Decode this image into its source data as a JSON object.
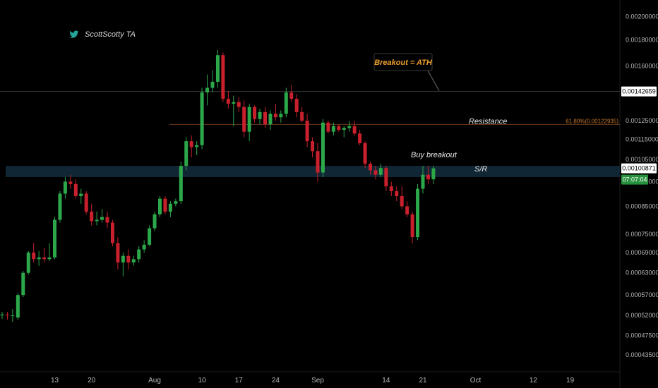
{
  "watermark": {
    "text": "ScottScotty TA",
    "icon": "twitter-bird-icon"
  },
  "colors": {
    "up": "#2ca84a",
    "down": "#c8202c",
    "sr_band": "#132a3a",
    "fib": "#c77a2e",
    "badge_green": "#27903d"
  },
  "annotations": {
    "breakout": "Breakout = ATH",
    "resistance": "Resistance",
    "buy_breakout": "Buy breakout",
    "sr": "S/R",
    "fib_label": "61.80%(0.00122935)"
  },
  "chart_data": {
    "type": "candlestick",
    "y_axis": {
      "scale": "log",
      "ylim": [
        0.000415,
        0.0021
      ],
      "ticks": [
        "0.00200000",
        "0.00180000",
        "0.00160000",
        "0.00142659",
        "0.00125000",
        "0.00115000",
        "0.00105000",
        "0.00100871",
        "0.00095000",
        "0.00085000",
        "0.00075000",
        "0.00069000",
        "0.00063000",
        "0.00057000",
        "0.00052000",
        "0.00047500",
        "0.00043500"
      ],
      "ath_level": "0.00142659",
      "current_price": "0.00100871",
      "countdown": "07:07:04"
    },
    "x_axis": {
      "labels": [
        "13",
        "20",
        "Aug",
        "10",
        "17",
        "24",
        "Sep",
        "14",
        "21",
        "Oct",
        "12",
        "19"
      ]
    },
    "resistance_level": 0.00122935,
    "sr_band": [
      0.00097,
      0.00102
    ],
    "candles": [
      {
        "o": 0.00052,
        "h": 0.000528,
        "l": 0.000512,
        "c": 0.000522
      },
      {
        "o": 0.000522,
        "h": 0.000528,
        "l": 0.00051,
        "c": 0.00052
      },
      {
        "o": 0.00052,
        "h": 0.000535,
        "l": 0.000505,
        "c": 0.00052
      },
      {
        "o": 0.000515,
        "h": 0.000575,
        "l": 0.00051,
        "c": 0.00057
      },
      {
        "o": 0.00057,
        "h": 0.000635,
        "l": 0.000565,
        "c": 0.00063
      },
      {
        "o": 0.00063,
        "h": 0.000695,
        "l": 0.000625,
        "c": 0.00069
      },
      {
        "o": 0.00069,
        "h": 0.00072,
        "l": 0.00066,
        "c": 0.00067
      },
      {
        "o": 0.00067,
        "h": 0.000695,
        "l": 0.00065,
        "c": 0.000675
      },
      {
        "o": 0.000675,
        "h": 0.000705,
        "l": 0.00066,
        "c": 0.00067
      },
      {
        "o": 0.00067,
        "h": 0.00072,
        "l": 0.000665,
        "c": 0.000675
      },
      {
        "o": 0.000675,
        "h": 0.00081,
        "l": 0.00067,
        "c": 0.0008
      },
      {
        "o": 0.0008,
        "h": 0.00091,
        "l": 0.00079,
        "c": 0.0009
      },
      {
        "o": 0.0009,
        "h": 0.00097,
        "l": 0.00088,
        "c": 0.00095
      },
      {
        "o": 0.00095,
        "h": 0.00098,
        "l": 0.00092,
        "c": 0.00094
      },
      {
        "o": 0.00094,
        "h": 0.00096,
        "l": 0.00088,
        "c": 0.00089
      },
      {
        "o": 0.00089,
        "h": 0.00092,
        "l": 0.00086,
        "c": 0.0009
      },
      {
        "o": 0.0009,
        "h": 0.00091,
        "l": 0.00082,
        "c": 0.00083
      },
      {
        "o": 0.00083,
        "h": 0.00086,
        "l": 0.00078,
        "c": 0.000795
      },
      {
        "o": 0.000795,
        "h": 0.00083,
        "l": 0.00078,
        "c": 0.0008
      },
      {
        "o": 0.0008,
        "h": 0.00084,
        "l": 0.00079,
        "c": 0.00081
      },
      {
        "o": 0.00081,
        "h": 0.00083,
        "l": 0.00077,
        "c": 0.00079
      },
      {
        "o": 0.00079,
        "h": 0.0008,
        "l": 0.00071,
        "c": 0.00072
      },
      {
        "o": 0.00072,
        "h": 0.00074,
        "l": 0.00064,
        "c": 0.00066
      },
      {
        "o": 0.00066,
        "h": 0.00069,
        "l": 0.00062,
        "c": 0.00068
      },
      {
        "o": 0.00068,
        "h": 0.0007,
        "l": 0.00064,
        "c": 0.00066
      },
      {
        "o": 0.00066,
        "h": 0.00068,
        "l": 0.00065,
        "c": 0.00067
      },
      {
        "o": 0.00067,
        "h": 0.00071,
        "l": 0.00066,
        "c": 0.0007
      },
      {
        "o": 0.0007,
        "h": 0.00073,
        "l": 0.00069,
        "c": 0.000715
      },
      {
        "o": 0.000715,
        "h": 0.00078,
        "l": 0.00071,
        "c": 0.00077
      },
      {
        "o": 0.00077,
        "h": 0.00083,
        "l": 0.00076,
        "c": 0.00082
      },
      {
        "o": 0.00082,
        "h": 0.00089,
        "l": 0.00081,
        "c": 0.00088
      },
      {
        "o": 0.00088,
        "h": 0.00089,
        "l": 0.00082,
        "c": 0.00083
      },
      {
        "o": 0.00083,
        "h": 0.00087,
        "l": 0.00081,
        "c": 0.00086
      },
      {
        "o": 0.00086,
        "h": 0.00088,
        "l": 0.00085,
        "c": 0.00087
      },
      {
        "o": 0.00087,
        "h": 0.00104,
        "l": 0.00086,
        "c": 0.00102
      },
      {
        "o": 0.00102,
        "h": 0.00116,
        "l": 0.001,
        "c": 0.00114
      },
      {
        "o": 0.00114,
        "h": 0.00117,
        "l": 0.00106,
        "c": 0.00111
      },
      {
        "o": 0.00111,
        "h": 0.00114,
        "l": 0.00107,
        "c": 0.00112
      },
      {
        "o": 0.00112,
        "h": 0.00145,
        "l": 0.0011,
        "c": 0.00142
      },
      {
        "o": 0.00142,
        "h": 0.00154,
        "l": 0.00134,
        "c": 0.00145
      },
      {
        "o": 0.00145,
        "h": 0.00157,
        "l": 0.00142,
        "c": 0.00149
      },
      {
        "o": 0.00149,
        "h": 0.00172,
        "l": 0.00145,
        "c": 0.00168
      },
      {
        "o": 0.00168,
        "h": 0.0017,
        "l": 0.00136,
        "c": 0.00138
      },
      {
        "o": 0.00138,
        "h": 0.00143,
        "l": 0.00132,
        "c": 0.00135
      },
      {
        "o": 0.00135,
        "h": 0.0014,
        "l": 0.00122,
        "c": 0.00136
      },
      {
        "o": 0.00136,
        "h": 0.00139,
        "l": 0.0013,
        "c": 0.00133
      },
      {
        "o": 0.00133,
        "h": 0.00137,
        "l": 0.00116,
        "c": 0.00119
      },
      {
        "o": 0.00119,
        "h": 0.00135,
        "l": 0.00114,
        "c": 0.00133
      },
      {
        "o": 0.00133,
        "h": 0.00134,
        "l": 0.00124,
        "c": 0.00126
      },
      {
        "o": 0.00126,
        "h": 0.00132,
        "l": 0.00123,
        "c": 0.0013
      },
      {
        "o": 0.0013,
        "h": 0.00133,
        "l": 0.00121,
        "c": 0.00123
      },
      {
        "o": 0.00123,
        "h": 0.00131,
        "l": 0.0012,
        "c": 0.00129
      },
      {
        "o": 0.00129,
        "h": 0.00135,
        "l": 0.00125,
        "c": 0.00127
      },
      {
        "o": 0.00127,
        "h": 0.00131,
        "l": 0.00124,
        "c": 0.00129
      },
      {
        "o": 0.00129,
        "h": 0.00145,
        "l": 0.00127,
        "c": 0.00142
      },
      {
        "o": 0.00142,
        "h": 0.00147,
        "l": 0.00136,
        "c": 0.00138
      },
      {
        "o": 0.00138,
        "h": 0.00141,
        "l": 0.00127,
        "c": 0.0013
      },
      {
        "o": 0.0013,
        "h": 0.00133,
        "l": 0.00124,
        "c": 0.00125
      },
      {
        "o": 0.00125,
        "h": 0.00129,
        "l": 0.00111,
        "c": 0.00114
      },
      {
        "o": 0.00114,
        "h": 0.00116,
        "l": 0.00106,
        "c": 0.00109
      },
      {
        "o": 0.00109,
        "h": 0.00113,
        "l": 0.00095,
        "c": 0.00099
      },
      {
        "o": 0.00099,
        "h": 0.00126,
        "l": 0.00097,
        "c": 0.00124
      },
      {
        "o": 0.00124,
        "h": 0.00125,
        "l": 0.00118,
        "c": 0.00119
      },
      {
        "o": 0.00119,
        "h": 0.00124,
        "l": 0.00117,
        "c": 0.00122
      },
      {
        "o": 0.00122,
        "h": 0.00123,
        "l": 0.00119,
        "c": 0.0012
      },
      {
        "o": 0.0012,
        "h": 0.00122,
        "l": 0.00116,
        "c": 0.00121
      },
      {
        "o": 0.00121,
        "h": 0.00125,
        "l": 0.00119,
        "c": 0.00122
      },
      {
        "o": 0.00122,
        "h": 0.00125,
        "l": 0.00117,
        "c": 0.00118
      },
      {
        "o": 0.00118,
        "h": 0.0012,
        "l": 0.00112,
        "c": 0.00113
      },
      {
        "o": 0.00113,
        "h": 0.00114,
        "l": 0.00101,
        "c": 0.00103
      },
      {
        "o": 0.00103,
        "h": 0.00104,
        "l": 0.00098,
        "c": 0.001
      },
      {
        "o": 0.001,
        "h": 0.00102,
        "l": 0.00096,
        "c": 0.00098
      },
      {
        "o": 0.00098,
        "h": 0.00103,
        "l": 0.00097,
        "c": 0.00101
      },
      {
        "o": 0.00101,
        "h": 0.00102,
        "l": 0.00091,
        "c": 0.00093
      },
      {
        "o": 0.00093,
        "h": 0.00095,
        "l": 0.00089,
        "c": 0.00091
      },
      {
        "o": 0.00091,
        "h": 0.00093,
        "l": 0.00087,
        "c": 0.00089
      },
      {
        "o": 0.00089,
        "h": 0.00093,
        "l": 0.00084,
        "c": 0.00085
      },
      {
        "o": 0.00085,
        "h": 0.00087,
        "l": 0.00081,
        "c": 0.00082
      },
      {
        "o": 0.00082,
        "h": 0.00083,
        "l": 0.00072,
        "c": 0.00074
      },
      {
        "o": 0.00074,
        "h": 0.00094,
        "l": 0.00073,
        "c": 0.00092
      },
      {
        "o": 0.00092,
        "h": 0.00102,
        "l": 0.0009,
        "c": 0.00098
      },
      {
        "o": 0.00098,
        "h": 0.00102,
        "l": 0.00094,
        "c": 0.00096
      },
      {
        "o": 0.00096,
        "h": 0.00102,
        "l": 0.00094,
        "c": 0.00100871
      }
    ]
  }
}
